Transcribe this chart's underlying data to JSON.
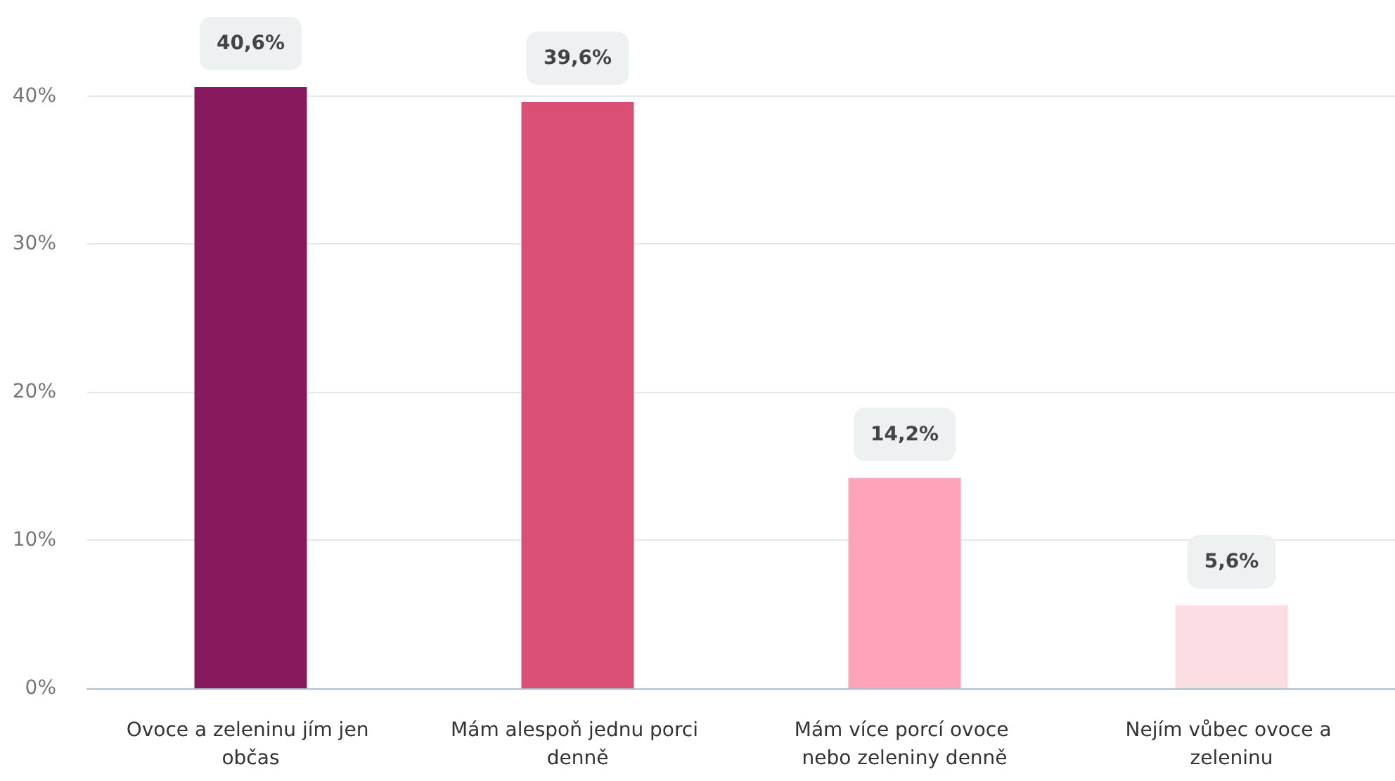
{
  "chart_data": {
    "type": "bar",
    "categories": [
      "Ovoce a zeleninu jím jen občas",
      "Mám alespoň jednu porci denně",
      "Mám více porcí ovoce nebo zeleniny denně",
      "Nejím vůbec ovoce a zeleninu"
    ],
    "values": [
      40.6,
      39.6,
      14.2,
      5.6
    ],
    "colors": [
      "#861a5c",
      "#d94f76",
      "#fea3b9",
      "#fddde4"
    ],
    "value_labels": [
      "40,6%",
      "39,6%",
      "14,2%",
      "5,6%"
    ],
    "yticks": [
      {
        "value": 0,
        "label": "0%"
      },
      {
        "value": 10,
        "label": "10%"
      },
      {
        "value": 20,
        "label": "20%"
      },
      {
        "value": 30,
        "label": "30%"
      },
      {
        "value": 40,
        "label": "40%"
      }
    ],
    "ylim": [
      0,
      40.6
    ],
    "grid": "y"
  }
}
